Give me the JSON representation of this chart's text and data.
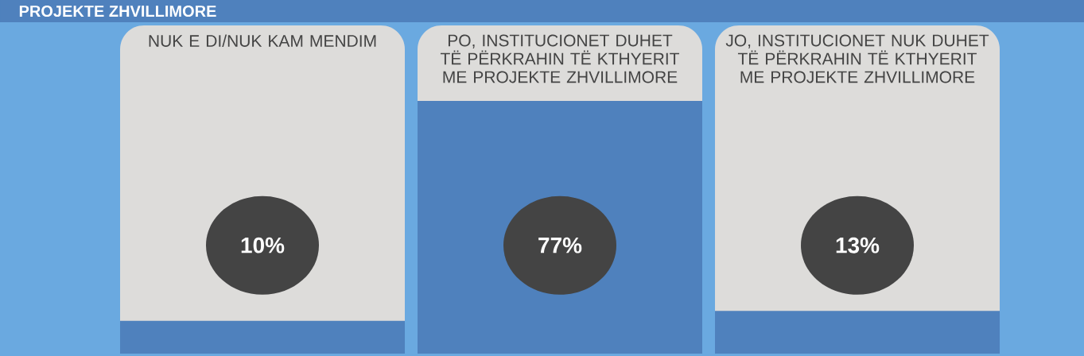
{
  "chart_data": {
    "type": "bar",
    "title": "PROJEKTE ZHVILLIMORE",
    "categories": [
      "NUK E DI/NUK KAM MENDIM",
      "PO, INSTITUCIONET DUHET TË PËRKRAHIN TË KTHYERIT ME PROJEKTE ZHVILLIMORE",
      "JO, INSTITUCIONET NUK DUHET TË PËRKRAHIN TË KTHYERIT ME PROJEKTE ZHVILLIMORE"
    ],
    "values": [
      10,
      77,
      13
    ],
    "value_labels": [
      "10%",
      "77%",
      "13%"
    ],
    "color": "#4f81bd",
    "ylim": [
      0,
      100
    ]
  }
}
